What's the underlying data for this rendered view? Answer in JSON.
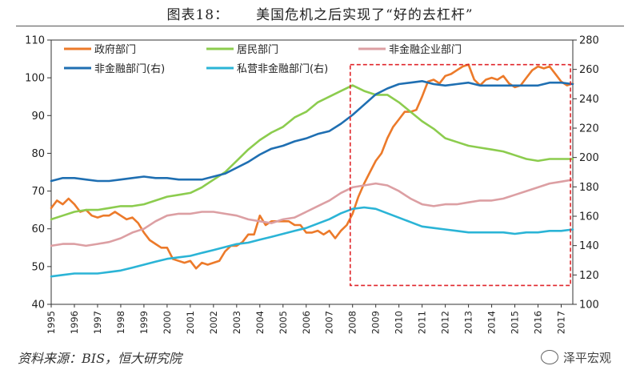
{
  "figure": {
    "title_number": "图表18：",
    "title_text": "美国危机之后实现了“好的去杠杆”",
    "source": "资料来源：BIS，恒大研究院",
    "watermark": "泽平宏观"
  },
  "chart_data": {
    "type": "line",
    "title": "美国危机之后实现了“好的去杠杆”",
    "x_ticks": [
      "1995",
      "1996",
      "1997",
      "1998",
      "1999",
      "2000",
      "2001",
      "2002",
      "2003",
      "2004",
      "2005",
      "2006",
      "2007",
      "2008",
      "2009",
      "2010",
      "2011",
      "2012",
      "2013",
      "2014",
      "2015",
      "2016",
      "2017"
    ],
    "xlim": [
      1995.0,
      2017.5
    ],
    "y_left": {
      "lim": [
        40,
        110
      ],
      "ticks": [
        40,
        50,
        60,
        70,
        80,
        90,
        100,
        110
      ]
    },
    "y_right": {
      "lim": [
        100,
        280
      ],
      "ticks": [
        100,
        120,
        140,
        160,
        180,
        200,
        220,
        240,
        260,
        280
      ]
    },
    "grid": false,
    "legend_position": "top",
    "highlight_box": {
      "x_from": 2007.9,
      "x_to": 2017.4,
      "y_left_from": 45,
      "y_left_to": 103.5,
      "color": "#e0262b",
      "style": "dashed"
    },
    "series": [
      {
        "name": "政府部门",
        "axis": "left",
        "color": "#ec7a2a",
        "x": [
          1995.0,
          1995.25,
          1995.5,
          1995.75,
          1996.0,
          1996.25,
          1996.5,
          1996.75,
          1997.0,
          1997.25,
          1997.5,
          1997.75,
          1998.0,
          1998.25,
          1998.5,
          1998.75,
          1999.0,
          1999.25,
          1999.5,
          1999.75,
          2000.0,
          2000.25,
          2000.5,
          2000.75,
          2001.0,
          2001.25,
          2001.5,
          2001.75,
          2002.0,
          2002.25,
          2002.5,
          2002.75,
          2003.0,
          2003.25,
          2003.5,
          2003.75,
          2004.0,
          2004.25,
          2004.5,
          2004.75,
          2005.0,
          2005.25,
          2005.5,
          2005.75,
          2006.0,
          2006.25,
          2006.5,
          2006.75,
          2007.0,
          2007.25,
          2007.5,
          2007.75,
          2008.0,
          2008.25,
          2008.5,
          2008.75,
          2009.0,
          2009.25,
          2009.5,
          2009.75,
          2010.0,
          2010.25,
          2010.5,
          2010.75,
          2011.0,
          2011.25,
          2011.5,
          2011.75,
          2012.0,
          2012.25,
          2012.5,
          2012.75,
          2013.0,
          2013.25,
          2013.5,
          2013.75,
          2014.0,
          2014.25,
          2014.5,
          2014.75,
          2015.0,
          2015.25,
          2015.5,
          2015.75,
          2016.0,
          2016.25,
          2016.5,
          2016.75,
          2017.0,
          2017.25,
          2017.5
        ],
        "values": [
          65.5,
          67.5,
          66.5,
          68.0,
          66.5,
          64.5,
          65.0,
          63.5,
          63.0,
          63.5,
          63.5,
          64.5,
          63.5,
          62.5,
          63.0,
          61.5,
          59.0,
          57.0,
          56.0,
          55.0,
          55.0,
          52.0,
          51.5,
          51.0,
          51.5,
          49.5,
          51.0,
          50.5,
          51.0,
          51.5,
          54.0,
          55.5,
          55.5,
          56.5,
          58.5,
          58.5,
          63.5,
          61.0,
          62.0,
          62.0,
          62.0,
          62.0,
          61.0,
          61.0,
          59.0,
          59.0,
          59.5,
          58.5,
          59.5,
          57.5,
          59.5,
          61.0,
          64.0,
          68.5,
          72.0,
          75.0,
          78.0,
          80.0,
          84.0,
          87.0,
          89.0,
          91.0,
          91.0,
          91.5,
          95.0,
          99.0,
          99.5,
          98.5,
          100.5,
          101.0,
          102.0,
          103.0,
          103.5,
          99.5,
          98.0,
          99.5,
          100.0,
          99.5,
          100.5,
          98.5,
          97.5,
          98.0,
          100.0,
          102.0,
          103.0,
          102.5,
          103.0,
          101.0,
          99.0,
          98.0,
          98.5
        ]
      },
      {
        "name": "居民部门",
        "axis": "left",
        "color": "#8ccc4e",
        "x": [
          1995.0,
          1995.5,
          1996.0,
          1996.5,
          1997.0,
          1997.5,
          1998.0,
          1998.5,
          1999.0,
          1999.5,
          2000.0,
          2000.5,
          2001.0,
          2001.5,
          2002.0,
          2002.5,
          2003.0,
          2003.5,
          2004.0,
          2004.5,
          2005.0,
          2005.5,
          2006.0,
          2006.5,
          2007.0,
          2007.5,
          2008.0,
          2008.5,
          2009.0,
          2009.5,
          2010.0,
          2010.5,
          2011.0,
          2011.5,
          2012.0,
          2012.5,
          2013.0,
          2013.5,
          2014.0,
          2014.5,
          2015.0,
          2015.5,
          2016.0,
          2016.5,
          2017.0,
          2017.5
        ],
        "values": [
          62.5,
          63.5,
          64.5,
          65.0,
          65.0,
          65.5,
          66.0,
          66.0,
          66.5,
          67.5,
          68.5,
          69.0,
          69.5,
          71.0,
          73.0,
          75.0,
          78.0,
          81.0,
          83.5,
          85.5,
          87.0,
          89.5,
          91.0,
          93.5,
          95.0,
          96.5,
          98.0,
          96.5,
          95.5,
          95.5,
          93.5,
          91.0,
          88.5,
          86.5,
          84.0,
          83.0,
          82.0,
          81.5,
          81.0,
          80.5,
          79.5,
          78.5,
          78.0,
          78.5,
          78.5,
          78.5
        ]
      },
      {
        "name": "非金融企业部门",
        "axis": "left",
        "color": "#dc9fa3",
        "x": [
          1995.0,
          1995.5,
          1996.0,
          1996.5,
          1997.0,
          1997.5,
          1998.0,
          1998.5,
          1999.0,
          1999.5,
          2000.0,
          2000.5,
          2001.0,
          2001.5,
          2002.0,
          2002.5,
          2003.0,
          2003.5,
          2004.0,
          2004.5,
          2005.0,
          2005.5,
          2006.0,
          2006.5,
          2007.0,
          2007.5,
          2008.0,
          2008.5,
          2009.0,
          2009.5,
          2010.0,
          2010.5,
          2011.0,
          2011.5,
          2012.0,
          2012.5,
          2013.0,
          2013.5,
          2014.0,
          2014.5,
          2015.0,
          2015.5,
          2016.0,
          2016.5,
          2017.0,
          2017.5
        ],
        "values": [
          55.5,
          56.0,
          56.0,
          55.5,
          56.0,
          56.5,
          57.5,
          59.0,
          60.0,
          62.0,
          63.5,
          64.0,
          64.0,
          64.5,
          64.5,
          64.0,
          63.5,
          62.5,
          62.0,
          61.5,
          62.5,
          63.0,
          64.5,
          66.0,
          67.5,
          69.5,
          71.0,
          71.5,
          72.0,
          71.5,
          70.0,
          68.0,
          66.5,
          66.0,
          66.5,
          66.5,
          67.0,
          67.5,
          67.5,
          68.0,
          69.0,
          70.0,
          71.0,
          72.0,
          72.5,
          73.0
        ]
      },
      {
        "name": "非金融部门(右)",
        "axis": "right",
        "color": "#1f6fb2",
        "x": [
          1995.0,
          1995.5,
          1996.0,
          1996.5,
          1997.0,
          1997.5,
          1998.0,
          1998.5,
          1999.0,
          1999.5,
          2000.0,
          2000.5,
          2001.0,
          2001.5,
          2002.0,
          2002.5,
          2003.0,
          2003.5,
          2004.0,
          2004.5,
          2005.0,
          2005.5,
          2006.0,
          2006.5,
          2007.0,
          2007.5,
          2008.0,
          2008.5,
          2009.0,
          2009.5,
          2010.0,
          2010.5,
          2011.0,
          2011.5,
          2012.0,
          2012.5,
          2013.0,
          2013.5,
          2014.0,
          2014.5,
          2015.0,
          2015.5,
          2016.0,
          2016.5,
          2017.0,
          2017.5
        ],
        "values": [
          184,
          186,
          186,
          185,
          184,
          184,
          185,
          186,
          187,
          186,
          186,
          185,
          185,
          185,
          187,
          189,
          193,
          197,
          202,
          206,
          208,
          211,
          213,
          216,
          218,
          223,
          229,
          236,
          243,
          247,
          250,
          251,
          252,
          250,
          249,
          250,
          251,
          249,
          249,
          249,
          249,
          249,
          249,
          251,
          251,
          250
        ]
      },
      {
        "name": "私营非金融部门(右)",
        "axis": "right",
        "color": "#2bb4d6",
        "x": [
          1995.0,
          1995.5,
          1996.0,
          1996.5,
          1997.0,
          1997.5,
          1998.0,
          1998.5,
          1999.0,
          1999.5,
          2000.0,
          2000.5,
          2001.0,
          2001.5,
          2002.0,
          2002.5,
          2003.0,
          2003.5,
          2004.0,
          2004.5,
          2005.0,
          2005.5,
          2006.0,
          2006.5,
          2007.0,
          2007.5,
          2008.0,
          2008.5,
          2009.0,
          2009.5,
          2010.0,
          2010.5,
          2011.0,
          2011.5,
          2012.0,
          2012.5,
          2013.0,
          2013.5,
          2014.0,
          2014.5,
          2015.0,
          2015.5,
          2016.0,
          2016.5,
          2017.0,
          2017.5
        ],
        "values": [
          119,
          120,
          121,
          121,
          121,
          122,
          123,
          125,
          127,
          129,
          131,
          132,
          133,
          135,
          137,
          139,
          141,
          142,
          144,
          146,
          148,
          150,
          152,
          155,
          158,
          162,
          165,
          166,
          165,
          162,
          159,
          156,
          153,
          152,
          151,
          150,
          149,
          149,
          149,
          149,
          148,
          149,
          149,
          150,
          150,
          151
        ]
      }
    ]
  }
}
